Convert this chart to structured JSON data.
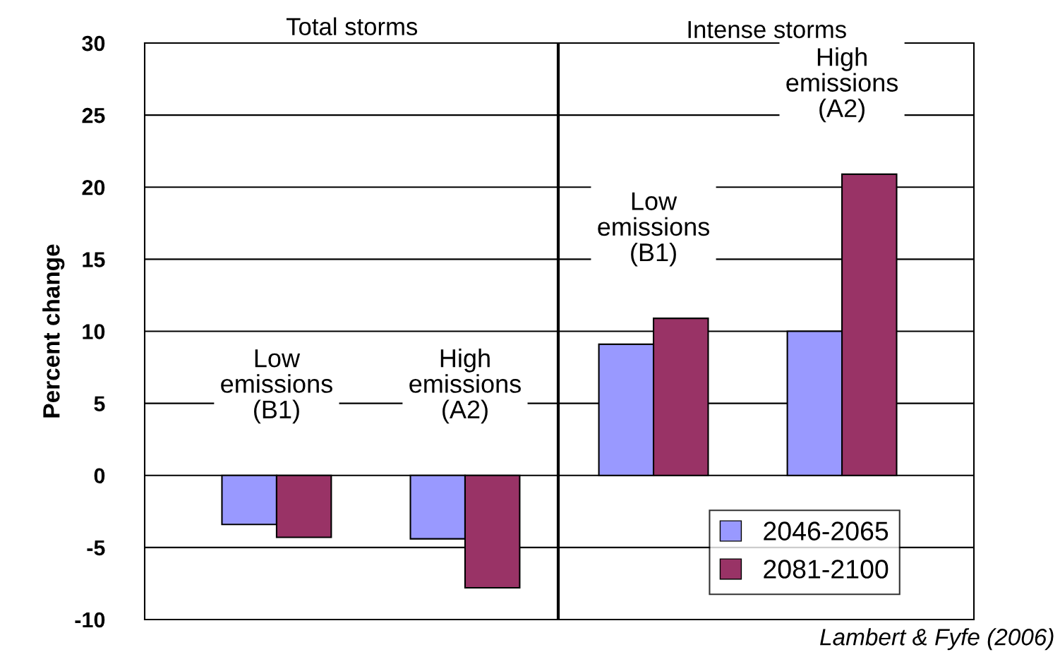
{
  "chart_data": {
    "type": "bar",
    "ylabel": "Percent change",
    "categories": [
      "Low\nemissions\n(B1)",
      "High\nemissions\n(A2)",
      "Low\nemissions\n(B1)",
      "High\nemissions\n(A2)"
    ],
    "series": [
      {
        "name": "2046-2065",
        "color": "#9999ff",
        "values": [
          -3.4,
          -4.4,
          9.1,
          10
        ]
      },
      {
        "name": "2081-2100",
        "color": "#993366",
        "values": [
          -4.3,
          -7.8,
          10.9,
          20.9
        ]
      }
    ],
    "ylim": [
      -10,
      30
    ],
    "yticks": [
      -10,
      -5,
      0,
      5,
      10,
      15,
      20,
      25,
      30
    ],
    "grid": "y",
    "legend": "bottom right",
    "annotations": [
      "Total storms",
      "Intense storms",
      "Lambert & Fyfe (2006)"
    ]
  }
}
